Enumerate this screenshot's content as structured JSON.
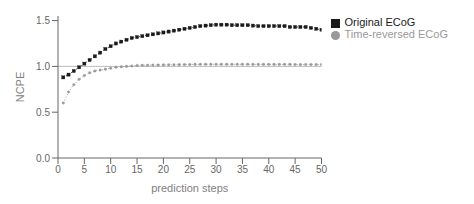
{
  "chart_data": {
    "type": "line",
    "x": [
      1,
      2,
      3,
      4,
      5,
      6,
      7,
      8,
      9,
      10,
      11,
      12,
      13,
      14,
      15,
      16,
      17,
      18,
      19,
      20,
      21,
      22,
      23,
      24,
      25,
      26,
      27,
      28,
      29,
      30,
      31,
      32,
      33,
      34,
      35,
      36,
      37,
      38,
      39,
      40,
      41,
      42,
      43,
      44,
      45,
      46,
      47,
      48,
      49,
      50
    ],
    "series": [
      {
        "name": "Original ECoG",
        "color": "#1a1a1a",
        "marker": "square",
        "line_style": "dotted",
        "values": [
          0.88,
          0.91,
          0.95,
          0.99,
          1.03,
          1.07,
          1.11,
          1.15,
          1.19,
          1.22,
          1.25,
          1.27,
          1.29,
          1.31,
          1.32,
          1.33,
          1.34,
          1.35,
          1.36,
          1.37,
          1.38,
          1.39,
          1.4,
          1.41,
          1.42,
          1.43,
          1.44,
          1.445,
          1.45,
          1.455,
          1.455,
          1.455,
          1.45,
          1.45,
          1.45,
          1.45,
          1.445,
          1.44,
          1.44,
          1.44,
          1.44,
          1.44,
          1.44,
          1.43,
          1.43,
          1.43,
          1.43,
          1.42,
          1.41,
          1.4
        ]
      },
      {
        "name": "Time-reversed ECoG",
        "color": "#999999",
        "marker": "circle",
        "line_style": "dotted",
        "values": [
          0.6,
          0.72,
          0.8,
          0.86,
          0.9,
          0.93,
          0.95,
          0.96,
          0.97,
          0.98,
          0.99,
          0.995,
          1.0,
          1.005,
          1.01,
          1.012,
          1.013,
          1.014,
          1.015,
          1.016,
          1.017,
          1.018,
          1.019,
          1.02,
          1.021,
          1.022,
          1.023,
          1.023,
          1.023,
          1.023,
          1.023,
          1.023,
          1.023,
          1.023,
          1.023,
          1.023,
          1.022,
          1.022,
          1.022,
          1.022,
          1.022,
          1.022,
          1.022,
          1.022,
          1.021,
          1.021,
          1.021,
          1.021,
          1.021,
          1.02
        ]
      }
    ],
    "hline": {
      "y": 1.0,
      "color": "#aaaaaa"
    },
    "xlabel": "prediction steps",
    "ylabel": "NCPE",
    "xlim": [
      0,
      50
    ],
    "ylim": [
      0.0,
      1.55
    ],
    "xticks": [
      0,
      5,
      10,
      15,
      20,
      25,
      30,
      35,
      40,
      45,
      50
    ],
    "yticks": [
      {
        "value": 0,
        "label": "0.0"
      },
      0.5,
      {
        "value": 1,
        "label": "1.0"
      },
      1.5
    ],
    "grid": false,
    "legend": "right"
  }
}
